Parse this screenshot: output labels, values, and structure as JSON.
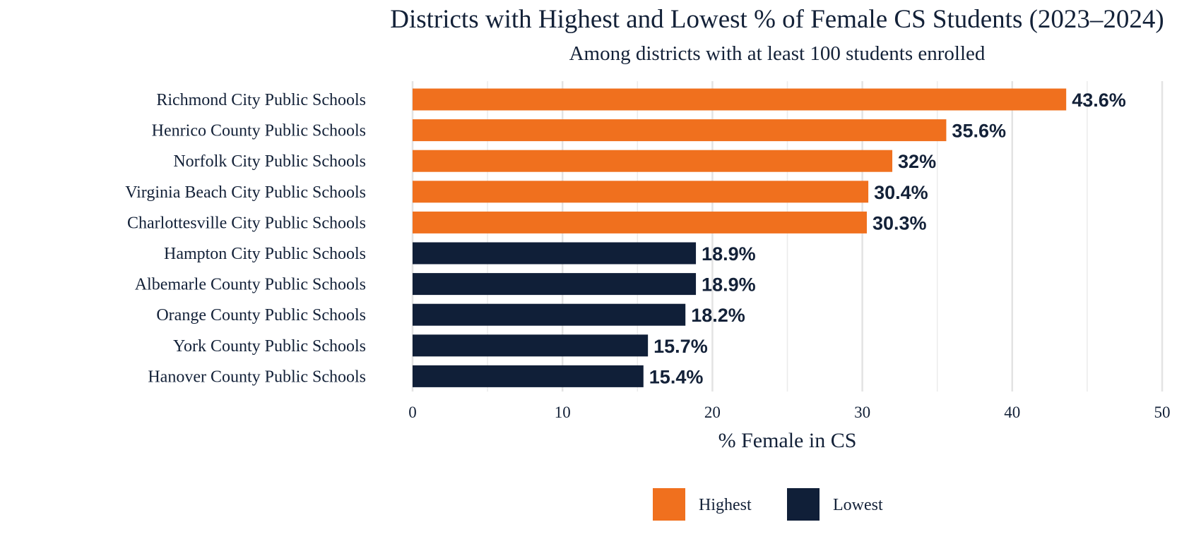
{
  "chart_data": {
    "type": "bar",
    "orientation": "horizontal",
    "title": "Districts with Highest and Lowest % of Female CS Students (2023–2024)",
    "subtitle": "Among districts with at least 100 students enrolled",
    "xlabel": "% Female in CS",
    "xlim": [
      0,
      50
    ],
    "xticks": [
      0,
      10,
      20,
      30,
      40,
      50
    ],
    "grid": true,
    "legend": {
      "placement": "bottom",
      "entries": [
        {
          "name": "Highest",
          "color": "#F0701E"
        },
        {
          "name": "Lowest",
          "color": "#101F38"
        }
      ]
    },
    "bars": [
      {
        "category": "Richmond City Public Schools",
        "value": 43.6,
        "label": "43.6%",
        "group": "Highest"
      },
      {
        "category": "Henrico County Public Schools",
        "value": 35.6,
        "label": "35.6%",
        "group": "Highest"
      },
      {
        "category": "Norfolk City Public Schools",
        "value": 32,
        "label": "32%",
        "group": "Highest"
      },
      {
        "category": "Virginia Beach City Public Schools",
        "value": 30.4,
        "label": "30.4%",
        "group": "Highest"
      },
      {
        "category": "Charlottesville City Public Schools",
        "value": 30.3,
        "label": "30.3%",
        "group": "Highest"
      },
      {
        "category": "Hampton City Public Schools",
        "value": 18.9,
        "label": "18.9%",
        "group": "Lowest"
      },
      {
        "category": "Albemarle County Public Schools",
        "value": 18.9,
        "label": "18.9%",
        "group": "Lowest"
      },
      {
        "category": "Orange County Public Schools",
        "value": 18.2,
        "label": "18.2%",
        "group": "Lowest"
      },
      {
        "category": "York County Public Schools",
        "value": 15.7,
        "label": "15.7%",
        "group": "Lowest"
      },
      {
        "category": "Hanover County Public Schools",
        "value": 15.4,
        "label": "15.4%",
        "group": "Lowest"
      }
    ]
  }
}
